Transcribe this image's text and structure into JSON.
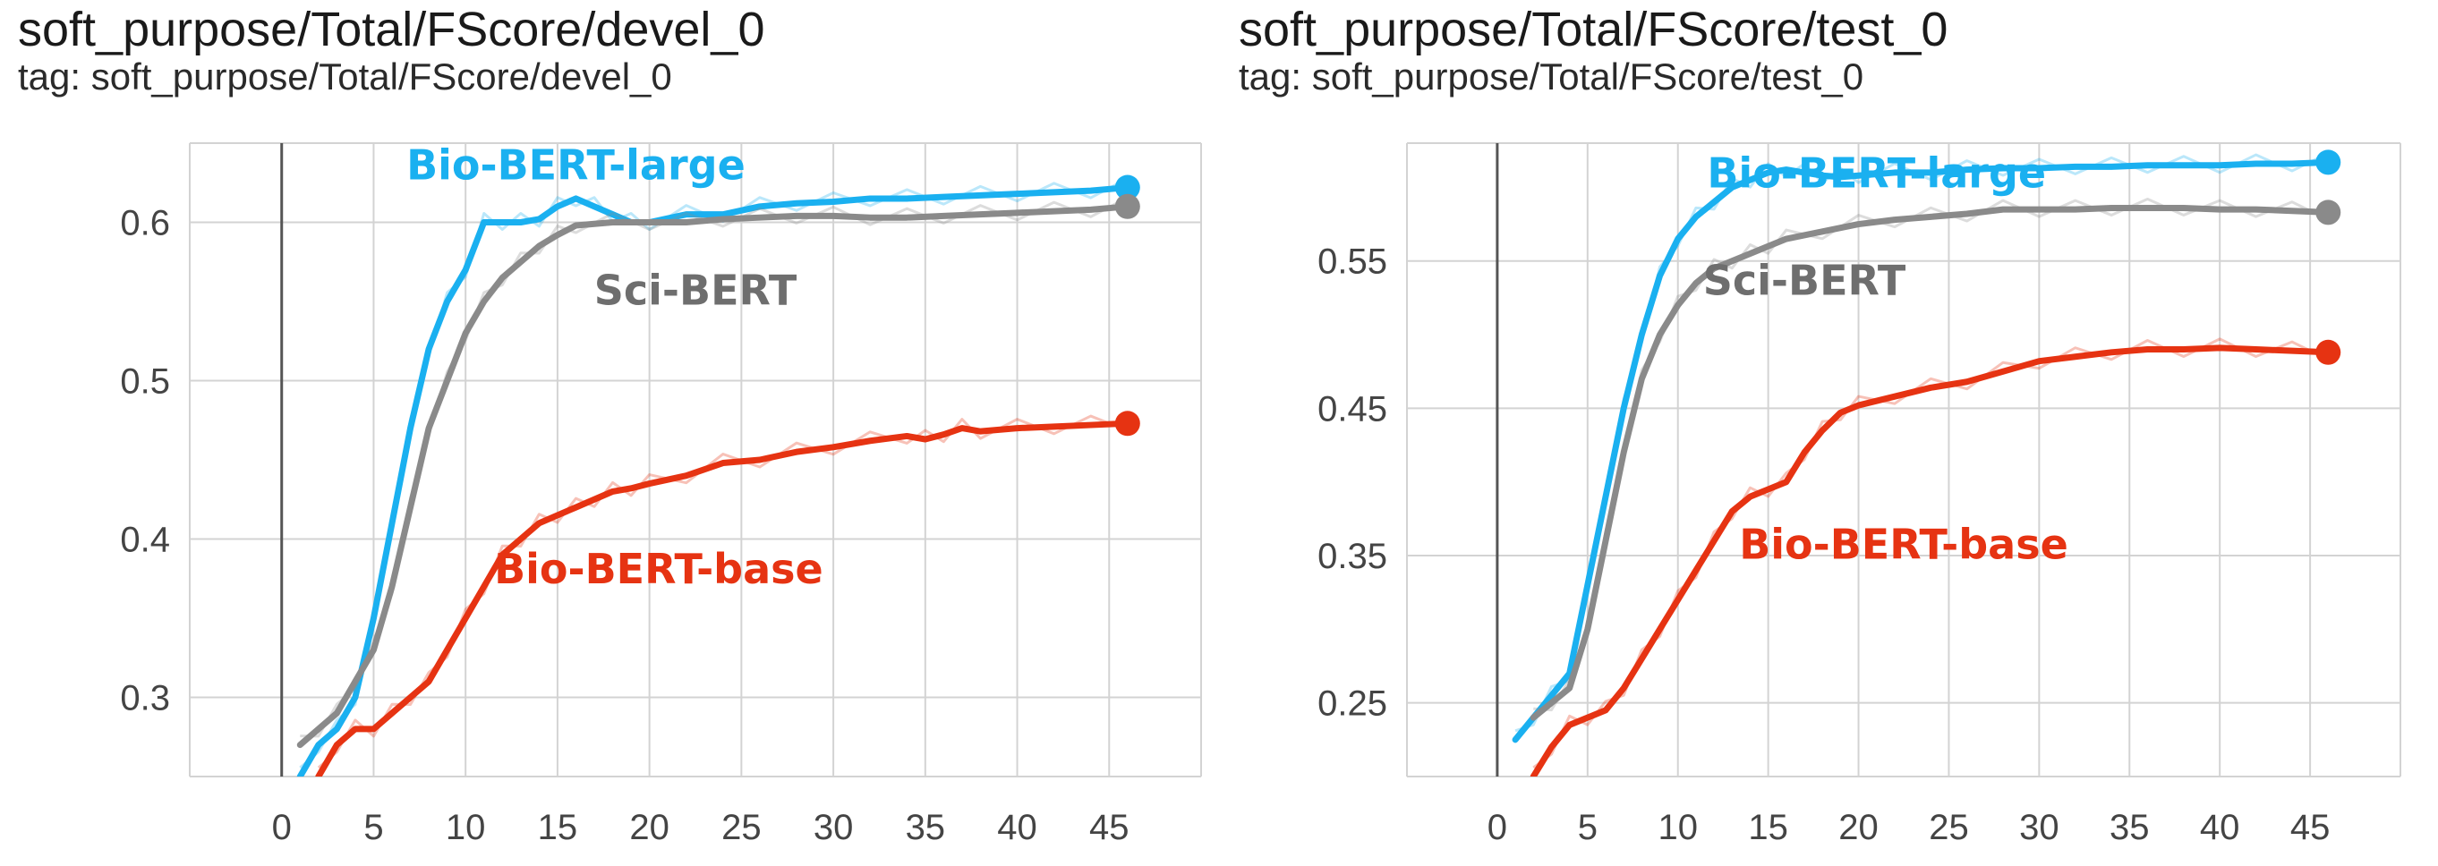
{
  "panels": [
    {
      "title": "soft_purpose/Total/FScore/devel_0",
      "tag": "tag: soft_purpose/Total/FScore/devel_0"
    },
    {
      "title": "soft_purpose/Total/FScore/test_0",
      "tag": "tag: soft_purpose/Total/FScore/test_0"
    }
  ],
  "colors": {
    "bio_bert_large": "#1ab0f0",
    "sci_bert": "#8a8a8a",
    "bio_bert_base": "#e63312",
    "grid": "#d3d3d3",
    "axis": "#555555"
  },
  "chart_data": [
    {
      "type": "line",
      "title": "soft_purpose/Total/FScore/devel_0",
      "xlabel": "",
      "ylabel": "",
      "xlim": [
        -5,
        50
      ],
      "ylim": [
        0.25,
        0.65
      ],
      "xticks": [
        0,
        5,
        10,
        15,
        20,
        25,
        30,
        35,
        40,
        45
      ],
      "xtick_labels": [
        "0",
        "5",
        "10",
        "15",
        "20",
        "25",
        "30",
        "35",
        "40",
        "45"
      ],
      "yticks": [
        0.3,
        0.4,
        0.5,
        0.6
      ],
      "ytick_labels": [
        "0.3",
        "0.4",
        "0.5",
        "0.6"
      ],
      "grid": true,
      "series": [
        {
          "name": "Bio-BERT-large",
          "label_pos": [
            16,
            0.627
          ],
          "x": [
            1,
            2,
            3,
            4,
            5,
            6,
            7,
            8,
            9,
            10,
            11,
            12,
            13,
            14,
            15,
            16,
            17,
            18,
            19,
            20,
            22,
            24,
            26,
            28,
            30,
            32,
            34,
            36,
            38,
            40,
            42,
            44,
            46
          ],
          "y": [
            0.25,
            0.27,
            0.28,
            0.3,
            0.35,
            0.41,
            0.47,
            0.52,
            0.55,
            0.57,
            0.6,
            0.6,
            0.6,
            0.602,
            0.61,
            0.615,
            0.61,
            0.605,
            0.6,
            0.6,
            0.605,
            0.605,
            0.61,
            0.612,
            0.613,
            0.615,
            0.615,
            0.616,
            0.617,
            0.618,
            0.619,
            0.62,
            0.622
          ]
        },
        {
          "name": "Sci-BERT",
          "label_pos": [
            22.5,
            0.548
          ],
          "x": [
            1,
            2,
            3,
            4,
            5,
            6,
            7,
            8,
            9,
            10,
            11,
            12,
            13,
            14,
            15,
            16,
            18,
            20,
            22,
            24,
            26,
            28,
            30,
            32,
            34,
            36,
            38,
            40,
            42,
            44,
            46
          ],
          "y": [
            0.27,
            0.28,
            0.29,
            0.31,
            0.33,
            0.37,
            0.42,
            0.47,
            0.5,
            0.53,
            0.55,
            0.565,
            0.575,
            0.585,
            0.592,
            0.598,
            0.6,
            0.6,
            0.6,
            0.602,
            0.603,
            0.604,
            0.604,
            0.603,
            0.603,
            0.604,
            0.605,
            0.606,
            0.607,
            0.608,
            0.61
          ]
        },
        {
          "name": "Bio-BERT-base",
          "label_pos": [
            20.5,
            0.372
          ],
          "x": [
            2,
            3,
            4,
            5,
            6,
            7,
            8,
            9,
            10,
            11,
            12,
            13,
            14,
            15,
            16,
            17,
            18,
            19,
            20,
            22,
            24,
            26,
            28,
            30,
            32,
            34,
            35,
            36,
            37,
            38,
            40,
            42,
            44,
            46
          ],
          "y": [
            0.25,
            0.27,
            0.28,
            0.28,
            0.29,
            0.3,
            0.31,
            0.33,
            0.35,
            0.37,
            0.39,
            0.4,
            0.41,
            0.415,
            0.42,
            0.425,
            0.43,
            0.432,
            0.435,
            0.44,
            0.448,
            0.45,
            0.455,
            0.458,
            0.462,
            0.465,
            0.463,
            0.466,
            0.47,
            0.468,
            0.47,
            0.471,
            0.472,
            0.473
          ]
        }
      ]
    },
    {
      "type": "line",
      "title": "soft_purpose/Total/FScore/test_0",
      "xlabel": "",
      "ylabel": "",
      "xlim": [
        -5,
        50
      ],
      "ylim": [
        0.2,
        0.63
      ],
      "xticks": [
        0,
        5,
        10,
        15,
        20,
        25,
        30,
        35,
        40,
        45
      ],
      "xtick_labels": [
        "0",
        "5",
        "10",
        "15",
        "20",
        "25",
        "30",
        "35",
        "40",
        "45"
      ],
      "yticks": [
        0.25,
        0.35,
        0.45,
        0.55
      ],
      "ytick_labels": [
        "0.25",
        "0.35",
        "0.45",
        "0.55"
      ],
      "grid": true,
      "series": [
        {
          "name": "Bio-BERT-large",
          "label_pos": [
            21,
            0.6
          ],
          "x": [
            1,
            2,
            3,
            4,
            5,
            6,
            7,
            8,
            9,
            10,
            11,
            12,
            13,
            14,
            15,
            16,
            17,
            18,
            19,
            20,
            22,
            24,
            26,
            28,
            30,
            32,
            34,
            36,
            38,
            40,
            42,
            44,
            46
          ],
          "y": [
            0.225,
            0.24,
            0.255,
            0.27,
            0.33,
            0.39,
            0.45,
            0.5,
            0.54,
            0.565,
            0.58,
            0.59,
            0.6,
            0.605,
            0.61,
            0.612,
            0.61,
            0.608,
            0.607,
            0.608,
            0.61,
            0.61,
            0.612,
            0.613,
            0.613,
            0.614,
            0.614,
            0.615,
            0.615,
            0.615,
            0.616,
            0.616,
            0.617
          ]
        },
        {
          "name": "Sci-BERT",
          "label_pos": [
            17,
            0.527
          ],
          "x": [
            2,
            3,
            4,
            5,
            6,
            7,
            8,
            9,
            10,
            11,
            12,
            13,
            14,
            15,
            16,
            18,
            20,
            22,
            24,
            26,
            28,
            30,
            32,
            34,
            36,
            38,
            40,
            42,
            44,
            46
          ],
          "y": [
            0.24,
            0.25,
            0.26,
            0.3,
            0.36,
            0.42,
            0.47,
            0.5,
            0.52,
            0.535,
            0.545,
            0.55,
            0.555,
            0.56,
            0.565,
            0.57,
            0.575,
            0.578,
            0.58,
            0.582,
            0.585,
            0.585,
            0.585,
            0.586,
            0.586,
            0.586,
            0.585,
            0.585,
            0.584,
            0.583
          ]
        },
        {
          "name": "Bio-BERT-base",
          "label_pos": [
            22.5,
            0.348
          ],
          "x": [
            2,
            3,
            4,
            5,
            6,
            7,
            8,
            9,
            10,
            11,
            12,
            13,
            14,
            15,
            16,
            17,
            18,
            19,
            20,
            22,
            24,
            26,
            28,
            30,
            32,
            34,
            36,
            38,
            40,
            42,
            44,
            46
          ],
          "y": [
            0.2,
            0.22,
            0.235,
            0.24,
            0.245,
            0.26,
            0.28,
            0.3,
            0.32,
            0.34,
            0.36,
            0.38,
            0.39,
            0.395,
            0.4,
            0.42,
            0.435,
            0.447,
            0.452,
            0.458,
            0.464,
            0.468,
            0.475,
            0.482,
            0.485,
            0.488,
            0.49,
            0.49,
            0.491,
            0.49,
            0.489,
            0.488
          ]
        }
      ]
    }
  ]
}
